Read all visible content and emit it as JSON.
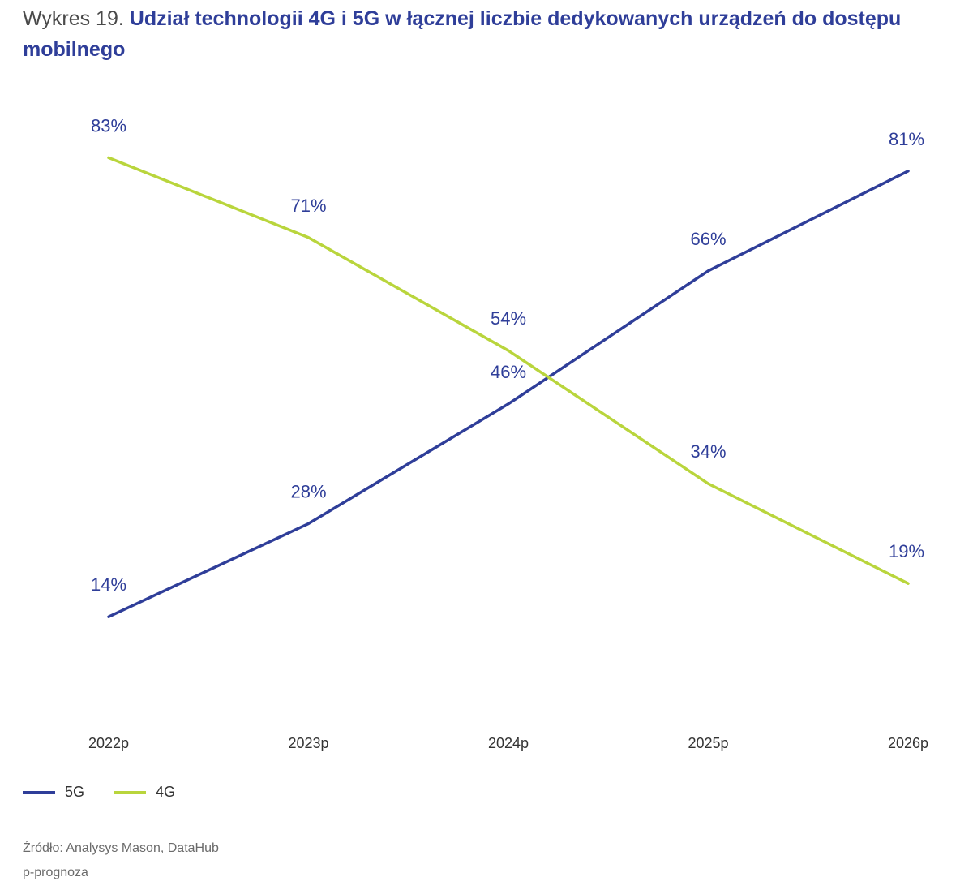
{
  "header": {
    "prefix": "Wykres 19.",
    "title": "Udział technologii 4G i 5G w łącznej liczbie dedykowanych urządzeń do dostępu mobilnego"
  },
  "chart_data": {
    "type": "line",
    "title": "Udział technologii 4G i 5G w łącznej liczbie dedykowanych urządzeń do dostępu mobilnego",
    "categories": [
      "2022p",
      "2023p",
      "2024p",
      "2025p",
      "2026p"
    ],
    "ylim": [
      0,
      100
    ],
    "grid": false,
    "legend_position": "bottom-left",
    "series": [
      {
        "name": "5G",
        "color": "#2f3e99",
        "values": [
          14,
          28,
          46,
          66,
          81
        ],
        "labels": [
          "14%",
          "28%",
          "46%",
          "66%",
          "81%"
        ]
      },
      {
        "name": "4G",
        "color": "#b9d53c",
        "values": [
          83,
          71,
          54,
          34,
          19
        ],
        "labels": [
          "83%",
          "71%",
          "54%",
          "34%",
          "19%"
        ]
      }
    ]
  },
  "legend": {
    "items": [
      {
        "label": "5G",
        "color": "#2f3e99"
      },
      {
        "label": "4G",
        "color": "#b9d53c"
      }
    ]
  },
  "footer": {
    "source": "Źródło: Analysys Mason, DataHub",
    "note": "p-prognoza"
  }
}
